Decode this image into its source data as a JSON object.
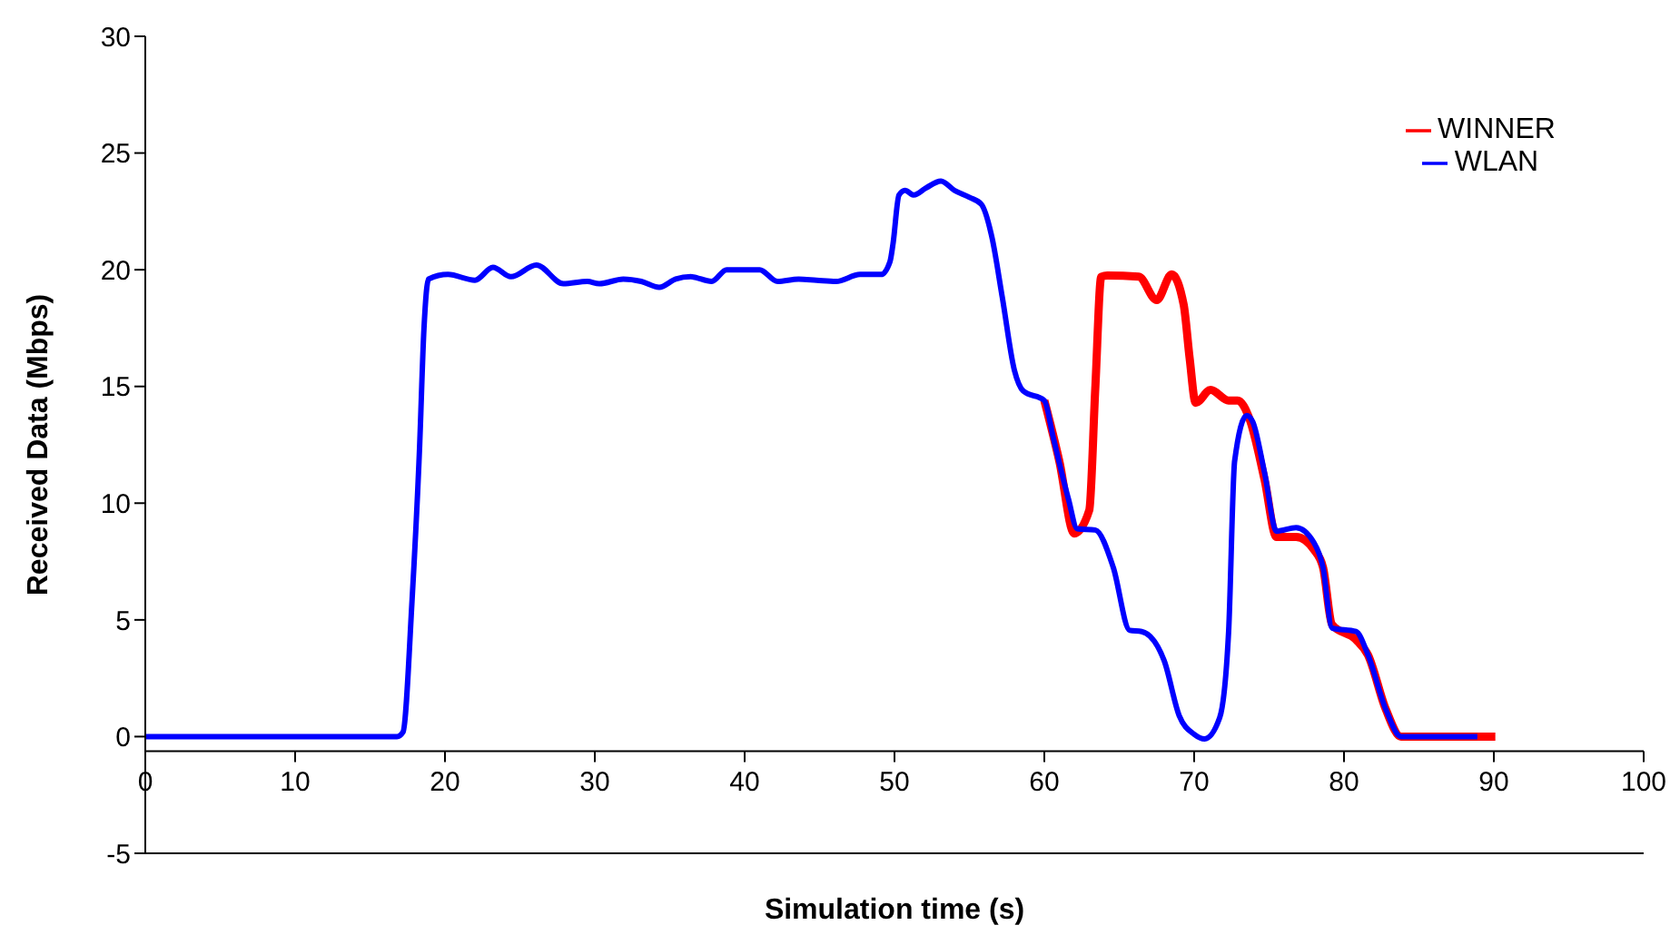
{
  "chart_data": {
    "type": "line",
    "xlabel": "Simulation time (s)",
    "ylabel": "Received Data (Mbps)",
    "xlim": [
      0,
      100
    ],
    "xticks": [
      0,
      10,
      20,
      30,
      40,
      50,
      60,
      70,
      80,
      90,
      100
    ],
    "ylim": [
      -5,
      30
    ],
    "yticks": [
      -5,
      0,
      5,
      10,
      15,
      20,
      25,
      30
    ],
    "legend": "top right",
    "marker": "none",
    "line_style": "solid",
    "series": [
      {
        "name": "WINNER",
        "color": "#ff0000",
        "x": [
          60,
          61,
          62,
          63,
          63.4,
          63.8,
          64.2,
          66.3,
          67.5,
          68.5,
          69.3,
          69.7,
          70.1,
          71.1,
          72.3,
          72.9,
          73.7,
          74.7,
          75.5,
          76.8,
          78,
          78.6,
          79.2,
          80.8,
          81.6,
          82.8,
          83.8,
          88.9,
          90.1
        ],
        "values": [
          14.4,
          11.8,
          8.7,
          9.7,
          14.9,
          19.7,
          19.75,
          19.7,
          18.7,
          19.8,
          18.5,
          16.2,
          14.3,
          14.85,
          14.4,
          14.4,
          13.6,
          11,
          8.55,
          8.55,
          8,
          7.25,
          4.8,
          4.15,
          3.5,
          1.15,
          0,
          0,
          0
        ]
      },
      {
        "name": "WLAN",
        "color": "#0000ff",
        "x": [
          0,
          14.5,
          16.8,
          17.2,
          17.8,
          18.3,
          18.6,
          18.9,
          20.2,
          22,
          23.2,
          24.4,
          26.1,
          27.9,
          29.5,
          30.3,
          31.9,
          33.1,
          34.3,
          35.4,
          36.4,
          37.8,
          38.8,
          41,
          42.2,
          43.6,
          44.8,
          46.1,
          47.7,
          49.1,
          49.7,
          49.9,
          50.3,
          50.7,
          51.3,
          52.1,
          53.1,
          54,
          55,
          55.8,
          56.5,
          57.2,
          58,
          58.6,
          60,
          60.6,
          61.6,
          62.2,
          63.4,
          64.6,
          65.7,
          66.5,
          68,
          69,
          70,
          70.7,
          71.7,
          72.3,
          72.7,
          73.5,
          73.9,
          74.7,
          75.5,
          76.8,
          78,
          78.6,
          79.2,
          80.8,
          81.6,
          82.8,
          83.8,
          88.9
        ],
        "values": [
          0,
          0,
          0,
          0.2,
          5.8,
          12.3,
          17.5,
          19.6,
          19.8,
          19.55,
          20.1,
          19.7,
          20.2,
          19.4,
          19.5,
          19.4,
          19.6,
          19.5,
          19.25,
          19.6,
          19.7,
          19.5,
          20,
          20,
          19.5,
          19.6,
          19.55,
          19.5,
          19.8,
          19.8,
          20.35,
          21.1,
          23.2,
          23.4,
          23.2,
          23.5,
          23.8,
          23.4,
          23.1,
          22.8,
          21.4,
          18.8,
          15.7,
          14.8,
          14.4,
          12.8,
          10.2,
          8.9,
          8.85,
          7.25,
          4.55,
          4.5,
          3.25,
          0.9,
          0.1,
          -0.1,
          0.8,
          4.5,
          11.8,
          13.75,
          13.5,
          11.3,
          8.8,
          8.95,
          8.3,
          7.25,
          4.65,
          4.5,
          3.5,
          1.15,
          0,
          0
        ]
      }
    ]
  }
}
